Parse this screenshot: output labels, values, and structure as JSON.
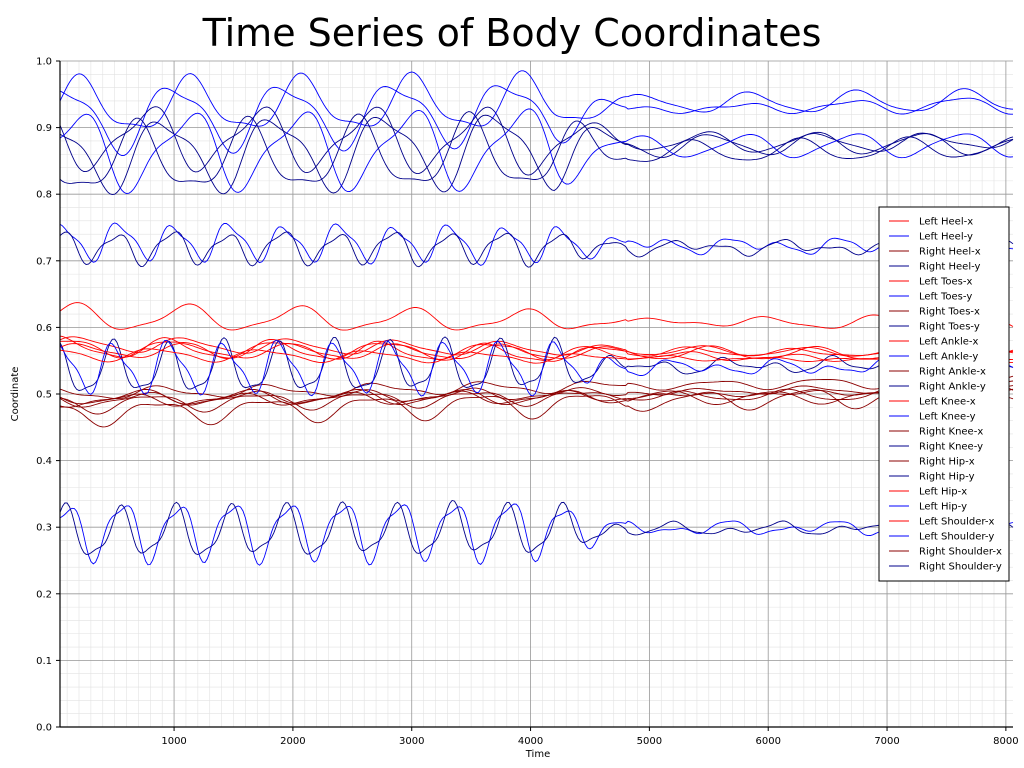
{
  "chart_data": {
    "type": "line",
    "title": "Time Series of Body Coordinates",
    "xlabel": "Time",
    "ylabel": "Coordinate",
    "xlim": [
      40,
      8060
    ],
    "ylim": [
      0.0,
      1.0
    ],
    "xticks": [
      1000,
      2000,
      3000,
      4000,
      5000,
      6000,
      7000,
      8000
    ],
    "yticks": [
      0.0,
      0.1,
      0.2,
      0.3,
      0.4,
      0.5,
      0.6,
      0.7,
      0.8,
      0.9,
      1.0
    ],
    "ytick_labels": [
      "0.0",
      "0.1",
      "0.2",
      "0.3",
      "0.4",
      "0.5",
      "0.6",
      "0.7",
      "0.8",
      "0.9",
      "1.0"
    ],
    "grid": true,
    "legend_position": "center-right",
    "series": [
      {
        "name": "Left Heel-x",
        "color": "#ff0000",
        "base": 0.575,
        "amp": 0.008,
        "period": 900,
        "phase": 0.2,
        "damp": 0.6,
        "trend": -0.015
      },
      {
        "name": "Left Heel-y",
        "color": "#0000ff",
        "base": 0.915,
        "amp": 0.045,
        "period": 930,
        "phase": 1.0,
        "damp": 0.8,
        "trend": 0.02
      },
      {
        "name": "Right Heel-x",
        "color": "#8b0000",
        "base": 0.485,
        "amp": 0.012,
        "period": 900,
        "phase": 2.0,
        "damp": 0.4,
        "trend": 0.02
      },
      {
        "name": "Right Heel-y",
        "color": "#00008b",
        "base": 0.885,
        "amp": 0.045,
        "period": 930,
        "phase": 2.6,
        "damp": 0.8,
        "trend": -0.01
      },
      {
        "name": "Left Toes-x",
        "color": "#ff0000",
        "base": 0.615,
        "amp": 0.016,
        "period": 950,
        "phase": 0.5,
        "damp": 0.5,
        "trend": -0.01
      },
      {
        "name": "Left Toes-y",
        "color": "#0000ff",
        "base": 0.93,
        "amp": 0.04,
        "period": 930,
        "phase": 0.1,
        "damp": 0.75,
        "trend": 0.01
      },
      {
        "name": "Right Toes-x",
        "color": "#8b0000",
        "base": 0.5,
        "amp": 0.01,
        "period": 900,
        "phase": 1.5,
        "damp": 0.4,
        "trend": 0.02
      },
      {
        "name": "Right Toes-y",
        "color": "#00008b",
        "base": 0.86,
        "amp": 0.05,
        "period": 930,
        "phase": 1.7,
        "damp": 0.8,
        "trend": 0.02
      },
      {
        "name": "Left Ankle-x",
        "color": "#ff0000",
        "base": 0.57,
        "amp": 0.01,
        "period": 900,
        "phase": 0.8,
        "damp": 0.5,
        "trend": -0.01
      },
      {
        "name": "Left Ankle-y",
        "color": "#0000ff",
        "base": 0.865,
        "amp": 0.055,
        "period": 930,
        "phase": 0.3,
        "damp": 0.8,
        "trend": 0.01
      },
      {
        "name": "Right Ankle-x",
        "color": "#8b0000",
        "base": 0.49,
        "amp": 0.01,
        "period": 900,
        "phase": 2.4,
        "damp": 0.4,
        "trend": 0.02
      },
      {
        "name": "Right Ankle-y",
        "color": "#00008b",
        "base": 0.85,
        "amp": 0.05,
        "period": 930,
        "phase": 3.2,
        "damp": 0.8,
        "trend": 0.02
      },
      {
        "name": "Left Knee-x",
        "color": "#ff0000",
        "base": 0.57,
        "amp": 0.012,
        "period": 900,
        "phase": 1.1,
        "damp": 0.5,
        "trend": -0.02
      },
      {
        "name": "Left Knee-y",
        "color": "#0000ff",
        "base": 0.73,
        "amp": 0.025,
        "period": 465,
        "phase": 0.6,
        "damp": 0.7,
        "trend": -0.01
      },
      {
        "name": "Right Knee-x",
        "color": "#8b0000",
        "base": 0.47,
        "amp": 0.018,
        "period": 900,
        "phase": 1.9,
        "damp": 0.4,
        "trend": 0.03
      },
      {
        "name": "Right Knee-y",
        "color": "#00008b",
        "base": 0.72,
        "amp": 0.022,
        "period": 465,
        "phase": 0.9,
        "damp": 0.7,
        "trend": 0.0
      },
      {
        "name": "Right Hip-x",
        "color": "#8b0000",
        "base": 0.495,
        "amp": 0.008,
        "period": 900,
        "phase": 2.9,
        "damp": 0.4,
        "trend": 0.0
      },
      {
        "name": "Right Hip-y",
        "color": "#00008b",
        "base": 0.535,
        "amp": 0.035,
        "period": 465,
        "phase": 1.3,
        "damp": 0.8,
        "trend": 0.01
      },
      {
        "name": "Left Hip-x",
        "color": "#ff0000",
        "base": 0.565,
        "amp": 0.008,
        "period": 900,
        "phase": 0.4,
        "damp": 0.5,
        "trend": -0.005
      },
      {
        "name": "Left Hip-y",
        "color": "#0000ff",
        "base": 0.54,
        "amp": 0.035,
        "period": 465,
        "phase": 1.1,
        "damp": 0.8,
        "trend": 0.0
      },
      {
        "name": "Left Shoulder-x",
        "color": "#ff0000",
        "base": 0.56,
        "amp": 0.008,
        "period": 900,
        "phase": 1.6,
        "damp": 0.5,
        "trend": -0.01
      },
      {
        "name": "Left Shoulder-y",
        "color": "#0000ff",
        "base": 0.295,
        "amp": 0.04,
        "period": 465,
        "phase": 0.2,
        "damp": 0.85,
        "trend": 0.005
      },
      {
        "name": "Right Shoulder-x",
        "color": "#8b0000",
        "base": 0.49,
        "amp": 0.01,
        "period": 900,
        "phase": 3.4,
        "damp": 0.4,
        "trend": 0.01
      },
      {
        "name": "Right Shoulder-y",
        "color": "#00008b",
        "base": 0.29,
        "amp": 0.035,
        "period": 465,
        "phase": 0.5,
        "damp": 0.85,
        "trend": 0.01
      }
    ]
  }
}
